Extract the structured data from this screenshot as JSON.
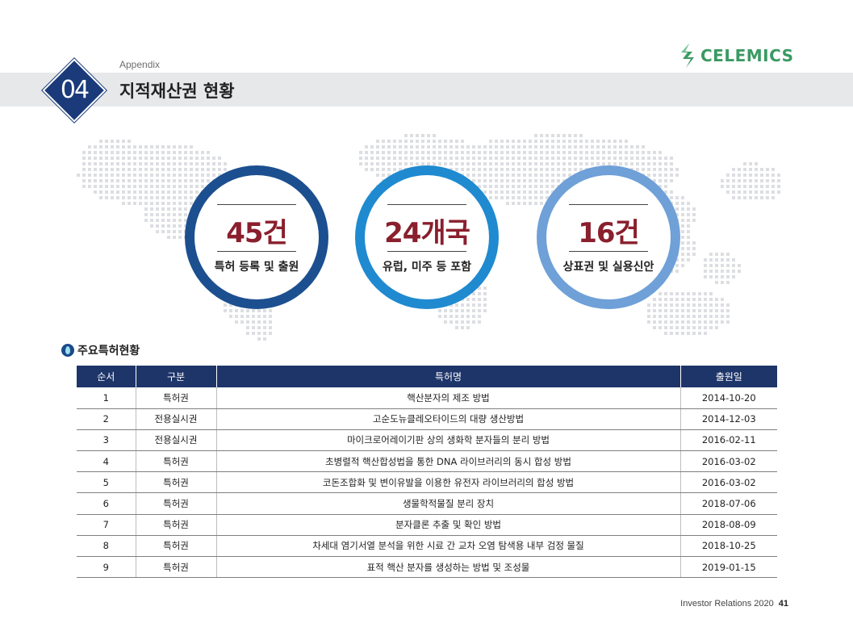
{
  "header": {
    "section_number": "04",
    "appendix_label": "Appendix",
    "page_title": "지적재산권 현황"
  },
  "logo": {
    "text": "CELEMICS",
    "color": "#3a9a63"
  },
  "stats": [
    {
      "value": "45건",
      "label": "특허 등록 및 출원",
      "ring_color": "#1c4f8f"
    },
    {
      "value": "24개국",
      "label": "유럽, 미주 등 포함",
      "ring_color": "#1f8ad0"
    },
    {
      "value": "16건",
      "label": "상표권 및 실용신안",
      "ring_color": "#6fa0d8"
    }
  ],
  "section": {
    "title": "주요특허현황"
  },
  "table": {
    "headers": [
      "순서",
      "구분",
      "특허명",
      "출원일"
    ],
    "rows": [
      [
        "1",
        "특허권",
        "핵산분자의 제조 방법",
        "2014-10-20"
      ],
      [
        "2",
        "전용실시권",
        "고순도뉴클레오타이드의 대량 생산방법",
        "2014-12-03"
      ],
      [
        "3",
        "전용실시권",
        "마이크로어레이기판 상의 생화학 분자들의 분리 방법",
        "2016-02-11"
      ],
      [
        "4",
        "특허권",
        "초병렬적 핵산합성법을 통한 DNA 라이브러리의 동시 합성 방법",
        "2016-03-02"
      ],
      [
        "5",
        "특허권",
        "코돈조합화 및 변이유발을 이용한 유전자 라이브러리의 합성 방법",
        "2016-03-02"
      ],
      [
        "6",
        "특허권",
        "생물학적물질 분리 장치",
        "2018-07-06"
      ],
      [
        "7",
        "특허권",
        "분자클론 추출 및 확인 방법",
        "2018-08-09"
      ],
      [
        "8",
        "특허권",
        "차세대 염기서열 분석을 위한 시료 간 교차 오염 탐색용 내부 검정 물질",
        "2018-10-25"
      ],
      [
        "9",
        "특허권",
        "표적 핵산 분자를 생성하는 방법 및 조성물",
        "2019-01-15"
      ]
    ]
  },
  "footer": {
    "text": "Investor Relations 2020",
    "page_number": "41"
  }
}
